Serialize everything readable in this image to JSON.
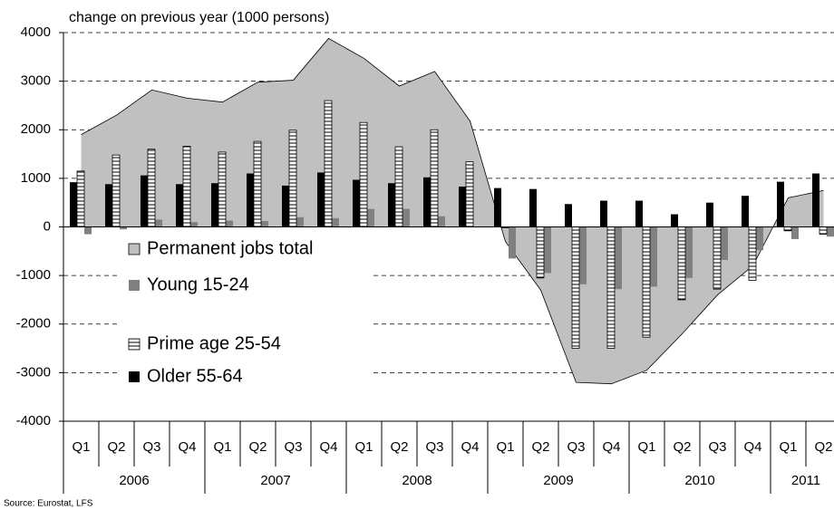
{
  "chart_data": {
    "type": "bar_area",
    "title": "change on previous year (1000 persons)",
    "source": "Source: Eurostat, LFS",
    "categories": [
      "Q1",
      "Q2",
      "Q3",
      "Q4",
      "Q1",
      "Q2",
      "Q3",
      "Q4",
      "Q1",
      "Q2",
      "Q3",
      "Q4",
      "Q1",
      "Q2",
      "Q3",
      "Q4",
      "Q1",
      "Q2",
      "Q3",
      "Q4",
      "Q1",
      "Q2"
    ],
    "years": [
      "2006",
      "2007",
      "2008",
      "2009",
      "2010",
      "2011"
    ],
    "ylim": [
      -4000,
      4000
    ],
    "yticks": [
      -4000,
      -3000,
      -2000,
      -1000,
      0,
      1000,
      2000,
      3000,
      4000
    ],
    "grid": true,
    "series": [
      {
        "name": "Permanent jobs total",
        "type": "area",
        "color": "#c0c0c0",
        "values": [
          1900,
          2300,
          2820,
          2650,
          2570,
          2980,
          3020,
          3880,
          3470,
          2900,
          3200,
          2180,
          -300,
          -1300,
          -3200,
          -3230,
          -2950,
          -2200,
          -1400,
          -800,
          600,
          750
        ]
      },
      {
        "name": "Young 15-24",
        "type": "bar",
        "color": "#808080",
        "values": [
          -150,
          -50,
          150,
          100,
          130,
          120,
          200,
          180,
          370,
          370,
          220,
          0,
          -650,
          -950,
          -1180,
          -1280,
          -1230,
          -1050,
          -680,
          -480,
          -250,
          -200
        ]
      },
      {
        "name": "Prime age 25-54",
        "type": "bar",
        "color": "striped",
        "values": [
          1150,
          1480,
          1600,
          1660,
          1540,
          1760,
          1990,
          2600,
          2150,
          1650,
          2000,
          1340,
          -20,
          -1050,
          -2500,
          -2500,
          -2270,
          -1500,
          -1280,
          -1100,
          -80,
          -150
        ]
      },
      {
        "name": "Older 55-64",
        "type": "bar",
        "color": "#000000",
        "values": [
          920,
          880,
          1060,
          880,
          900,
          1100,
          850,
          1120,
          970,
          900,
          1020,
          830,
          800,
          780,
          470,
          540,
          540,
          260,
          500,
          640,
          930,
          1100
        ]
      }
    ]
  }
}
